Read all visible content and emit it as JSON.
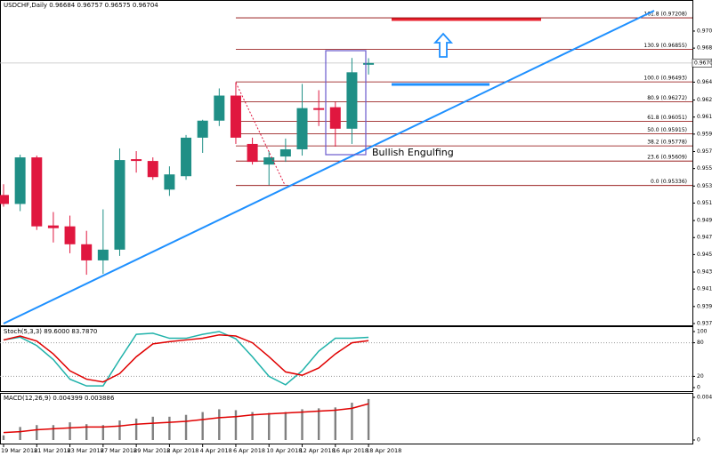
{
  "chart_data": [
    {
      "type": "candlestick",
      "title": "USDCHF,Daily  0.96684 0.96757 0.96575 0.96704",
      "categories": [
        "19 Mar 2018",
        null,
        "21 Mar 2018",
        null,
        "23 Mar 2018",
        null,
        "27 Mar 2018",
        null,
        "29 Mar 2018",
        null,
        "2 Apr 2018",
        null,
        "4 Apr 2018",
        null,
        "6 Apr 2018",
        null,
        "10 Apr 2018",
        null,
        "12 Apr 2018",
        null,
        "16 Apr 2018",
        null,
        "18 Apr 2018"
      ],
      "open": [
        0.9523,
        0.9513,
        0.9565,
        0.9489,
        0.9488,
        0.9468,
        0.945,
        0.9462,
        0.9563,
        0.9561,
        0.9529,
        0.9544,
        0.9587,
        0.9606,
        0.9634,
        0.958,
        0.9557,
        0.9566,
        0.9574,
        0.962,
        0.9621,
        0.9597,
        0.96684
      ],
      "high": [
        0.9535,
        0.9568,
        0.9567,
        0.9504,
        0.95,
        0.9483,
        0.9507,
        0.9575,
        0.9572,
        0.9565,
        0.9555,
        0.959,
        0.9607,
        0.9642,
        0.9649,
        0.9587,
        0.9572,
        0.9586,
        0.9647,
        0.964,
        0.9627,
        0.9676,
        0.96757
      ],
      "low": [
        0.951,
        0.9505,
        0.9484,
        0.947,
        0.9458,
        0.9434,
        0.9435,
        0.9455,
        0.9548,
        0.954,
        0.9522,
        0.954,
        0.957,
        0.96,
        0.958,
        0.9557,
        0.9534,
        0.956,
        0.9567,
        0.96,
        0.9577,
        0.958,
        0.96575
      ],
      "close": [
        0.9513,
        0.9565,
        0.9488,
        0.9486,
        0.9468,
        0.945,
        0.9462,
        0.9562,
        0.9561,
        0.9543,
        0.9546,
        0.9587,
        0.9606,
        0.9634,
        0.9587,
        0.956,
        0.9565,
        0.9574,
        0.962,
        0.9618,
        0.9597,
        0.966,
        0.96704
      ],
      "up_color": "#1f8f86",
      "down_color": "#e0173f",
      "ylim": [
        0.93775,
        0.97407
      ],
      "yticks": [
        {
          "value": 0.9706,
          "label": "0.97060"
        },
        {
          "value": 0.9687,
          "label": "0.96870"
        },
        {
          "value": 0.9649,
          "label": "0.96490"
        },
        {
          "value": 0.9629,
          "label": "0.96290"
        },
        {
          "value": 0.961,
          "label": "0.96100"
        },
        {
          "value": 0.9591,
          "label": "0.95910"
        },
        {
          "value": 0.95715,
          "label": "0.95715"
        },
        {
          "value": 0.95525,
          "label": "0.95525"
        },
        {
          "value": 0.9533,
          "label": "0.95330"
        },
        {
          "value": 0.9514,
          "label": "0.95140"
        },
        {
          "value": 0.94945,
          "label": "0.94945"
        },
        {
          "value": 0.94755,
          "label": "0.94755"
        },
        {
          "value": 0.94565,
          "label": "0.94565"
        },
        {
          "value": 0.9437,
          "label": "0.94370"
        },
        {
          "value": 0.9418,
          "label": "0.94180"
        },
        {
          "value": 0.93985,
          "label": "0.93985"
        },
        {
          "value": 0.93795,
          "label": "0.93795"
        }
      ],
      "last_price": 0.96704,
      "fib_color": "#8b0000",
      "fib_levels": [
        {
          "value": 0.97208,
          "label": "161.8 (0.97208)"
        },
        {
          "value": 0.96855,
          "label": "130.9 (0.96855)"
        },
        {
          "value": 0.96493,
          "label": "100.0 (0.96493)"
        },
        {
          "value": 0.96272,
          "label": "80.9 (0.96272)"
        },
        {
          "value": 0.96051,
          "label": "61.8 (0.96051)"
        },
        {
          "value": 0.95915,
          "label": "50.0 (0.95915)"
        },
        {
          "value": 0.95778,
          "label": "38.2 (0.95778)"
        },
        {
          "value": 0.95609,
          "label": "23.6 (0.95609)"
        },
        {
          "value": 0.95336,
          "label": "0.0 (0.95336)"
        }
      ],
      "annotation": "Bullish Engulfing"
    },
    {
      "type": "line",
      "title": "Stoch(5,3,3) 89.6000 83.7870",
      "series": [
        {
          "color": "#20b2aa",
          "values": [
            85,
            90,
            75,
            50,
            15,
            3,
            3,
            50,
            95,
            97,
            88,
            88,
            95,
            100,
            87,
            55,
            20,
            5,
            30,
            65,
            88,
            88,
            89.6
          ]
        },
        {
          "color": "#e00000",
          "values": [
            85,
            92,
            83,
            60,
            30,
            15,
            10,
            25,
            55,
            78,
            82,
            85,
            88,
            94,
            92,
            80,
            55,
            28,
            22,
            35,
            60,
            80,
            83.787
          ]
        }
      ],
      "ylim": [
        -6.3,
        107.9
      ],
      "yticks": [
        100,
        80,
        20,
        0
      ]
    },
    {
      "type": "macd",
      "title": "MACD(12,26,9) 0.004399 0.003886",
      "histogram": {
        "color": "#808080",
        "values": [
          0.0005,
          0.0014,
          0.0016,
          0.0016,
          0.0019,
          0.0017,
          0.0016,
          0.0021,
          0.0023,
          0.0025,
          0.0025,
          0.0027,
          0.003,
          0.0033,
          0.0032,
          0.003,
          0.0029,
          0.003,
          0.0033,
          0.0034,
          0.0035,
          0.004,
          0.004399
        ]
      },
      "signal": {
        "color": "#e00000",
        "values": [
          0.0008,
          0.0009,
          0.0011,
          0.0012,
          0.0013,
          0.0014,
          0.0014,
          0.0015,
          0.0017,
          0.0018,
          0.0019,
          0.002,
          0.0022,
          0.0024,
          0.0025,
          0.0027,
          0.0028,
          0.0029,
          0.003,
          0.0031,
          0.0032,
          0.0034,
          0.003886
        ]
      },
      "ylim": [
        -0.000477,
        0.004963
      ],
      "yticks": [
        0.004581,
        0
      ]
    }
  ]
}
